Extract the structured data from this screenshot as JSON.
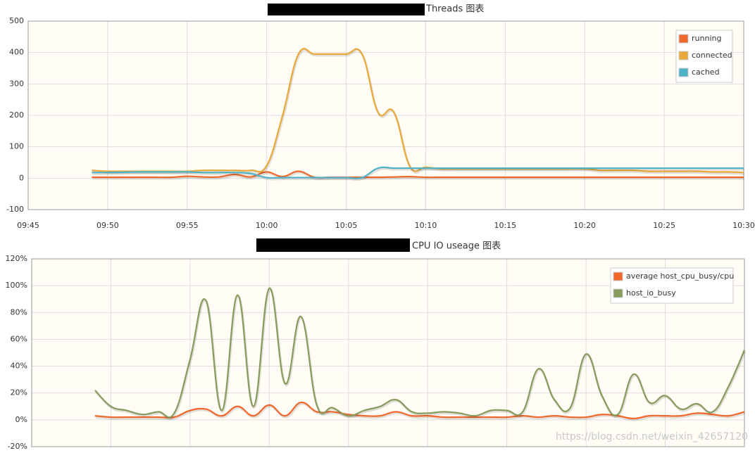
{
  "chart_data": [
    {
      "type": "line",
      "title": "Threads 图表",
      "x": [
        "09:49",
        "09:50",
        "09:51",
        "09:52",
        "09:53",
        "09:54",
        "09:55",
        "09:56",
        "09:57",
        "09:58",
        "09:59",
        "10:00",
        "10:01",
        "10:02",
        "10:03",
        "10:04",
        "10:05",
        "10:06",
        "10:07",
        "10:08",
        "10:09",
        "10:10",
        "10:11",
        "10:12",
        "10:13",
        "10:14",
        "10:15",
        "10:16",
        "10:17",
        "10:18",
        "10:19",
        "10:20",
        "10:21",
        "10:22",
        "10:23",
        "10:24",
        "10:25",
        "10:26",
        "10:27",
        "10:28",
        "10:29",
        "10:30"
      ],
      "series": [
        {
          "name": "running",
          "color": "#ef6a2e",
          "values": [
            3,
            3,
            3,
            3,
            3,
            3,
            6,
            4,
            4,
            12,
            4,
            20,
            5,
            22,
            3,
            3,
            3,
            3,
            3,
            4,
            5,
            3,
            3,
            3,
            3,
            3,
            3,
            3,
            3,
            3,
            3,
            3,
            3,
            3,
            3,
            3,
            3,
            3,
            3,
            3,
            3,
            3
          ]
        },
        {
          "name": "connected",
          "color": "#e9a83a",
          "values": [
            25,
            22,
            22,
            22,
            22,
            22,
            22,
            25,
            25,
            25,
            25,
            40,
            200,
            395,
            395,
            395,
            395,
            395,
            210,
            210,
            38,
            35,
            30,
            30,
            30,
            30,
            30,
            30,
            30,
            30,
            30,
            30,
            25,
            25,
            25,
            22,
            22,
            22,
            22,
            20,
            20,
            18
          ]
        },
        {
          "name": "cached",
          "color": "#4fb3c8",
          "values": [
            18,
            18,
            19,
            20,
            20,
            20,
            20,
            18,
            18,
            18,
            15,
            2,
            2,
            2,
            2,
            2,
            2,
            2,
            32,
            32,
            32,
            32,
            32,
            32,
            32,
            32,
            32,
            32,
            32,
            32,
            32,
            32,
            32,
            32,
            32,
            32,
            32,
            32,
            32,
            32,
            32,
            32
          ]
        }
      ],
      "ylim": [
        -100,
        500
      ],
      "yticks": [
        -100,
        0,
        100,
        200,
        300,
        400,
        500
      ],
      "xlim": [
        "09:45",
        "10:30"
      ],
      "xticks": [
        "09:45",
        "09:50",
        "09:55",
        "10:00",
        "10:05",
        "10:10",
        "10:15",
        "10:20",
        "10:25",
        "10:30"
      ],
      "grid": true,
      "legend": "top-right"
    },
    {
      "type": "line",
      "title": "CPU IO useage 图表",
      "x": [
        "09:49",
        "09:50",
        "09:51",
        "09:52",
        "09:53",
        "09:54",
        "09:55",
        "09:56",
        "09:57",
        "09:58",
        "09:59",
        "10:00",
        "10:01",
        "10:02",
        "10:03",
        "10:04",
        "10:05",
        "10:06",
        "10:07",
        "10:08",
        "10:09",
        "10:10",
        "10:11",
        "10:12",
        "10:13",
        "10:14",
        "10:15",
        "10:16",
        "10:17",
        "10:18",
        "10:19",
        "10:20",
        "10:21",
        "10:22",
        "10:23",
        "10:24",
        "10:25",
        "10:26",
        "10:27",
        "10:28",
        "10:29",
        "10:30"
      ],
      "series": [
        {
          "name": "average host_cpu_busy/cpu",
          "color": "#f2662c",
          "values": [
            3,
            2,
            2,
            2,
            2,
            2,
            7,
            8,
            3,
            10,
            3,
            11,
            3,
            13,
            6,
            6,
            4,
            3,
            3,
            6,
            3,
            3,
            2,
            2,
            2,
            2,
            2,
            3,
            2,
            3,
            2,
            2,
            4,
            3,
            1,
            3,
            3,
            3,
            5,
            4,
            3,
            6
          ]
        },
        {
          "name": "host_io_busy",
          "color": "#869b5c",
          "values": [
            22,
            10,
            7,
            4,
            6,
            5,
            45,
            89,
            7,
            93,
            10,
            98,
            27,
            77,
            11,
            9,
            3,
            7,
            10,
            15,
            6,
            5,
            6,
            5,
            3,
            7,
            7,
            6,
            38,
            15,
            9,
            49,
            18,
            4,
            34,
            13,
            18,
            8,
            12,
            6,
            25,
            52
          ]
        }
      ],
      "ylim": [
        -20,
        120
      ],
      "yticks": [
        {
          "value": -20,
          "label": "-20%"
        },
        {
          "value": 0,
          "label": "0%"
        },
        {
          "value": 20,
          "label": "20%"
        },
        {
          "value": 40,
          "label": "40%"
        },
        {
          "value": 60,
          "label": "60%"
        },
        {
          "value": 80,
          "label": "80%"
        },
        {
          "value": 100,
          "label": "100%"
        },
        {
          "value": 120,
          "label": "120%"
        }
      ],
      "xlim": [
        "09:45",
        "10:30"
      ],
      "grid": true,
      "legend": "top-right"
    }
  ],
  "watermark": "https://blog.csdn.net/weixin_42657120"
}
